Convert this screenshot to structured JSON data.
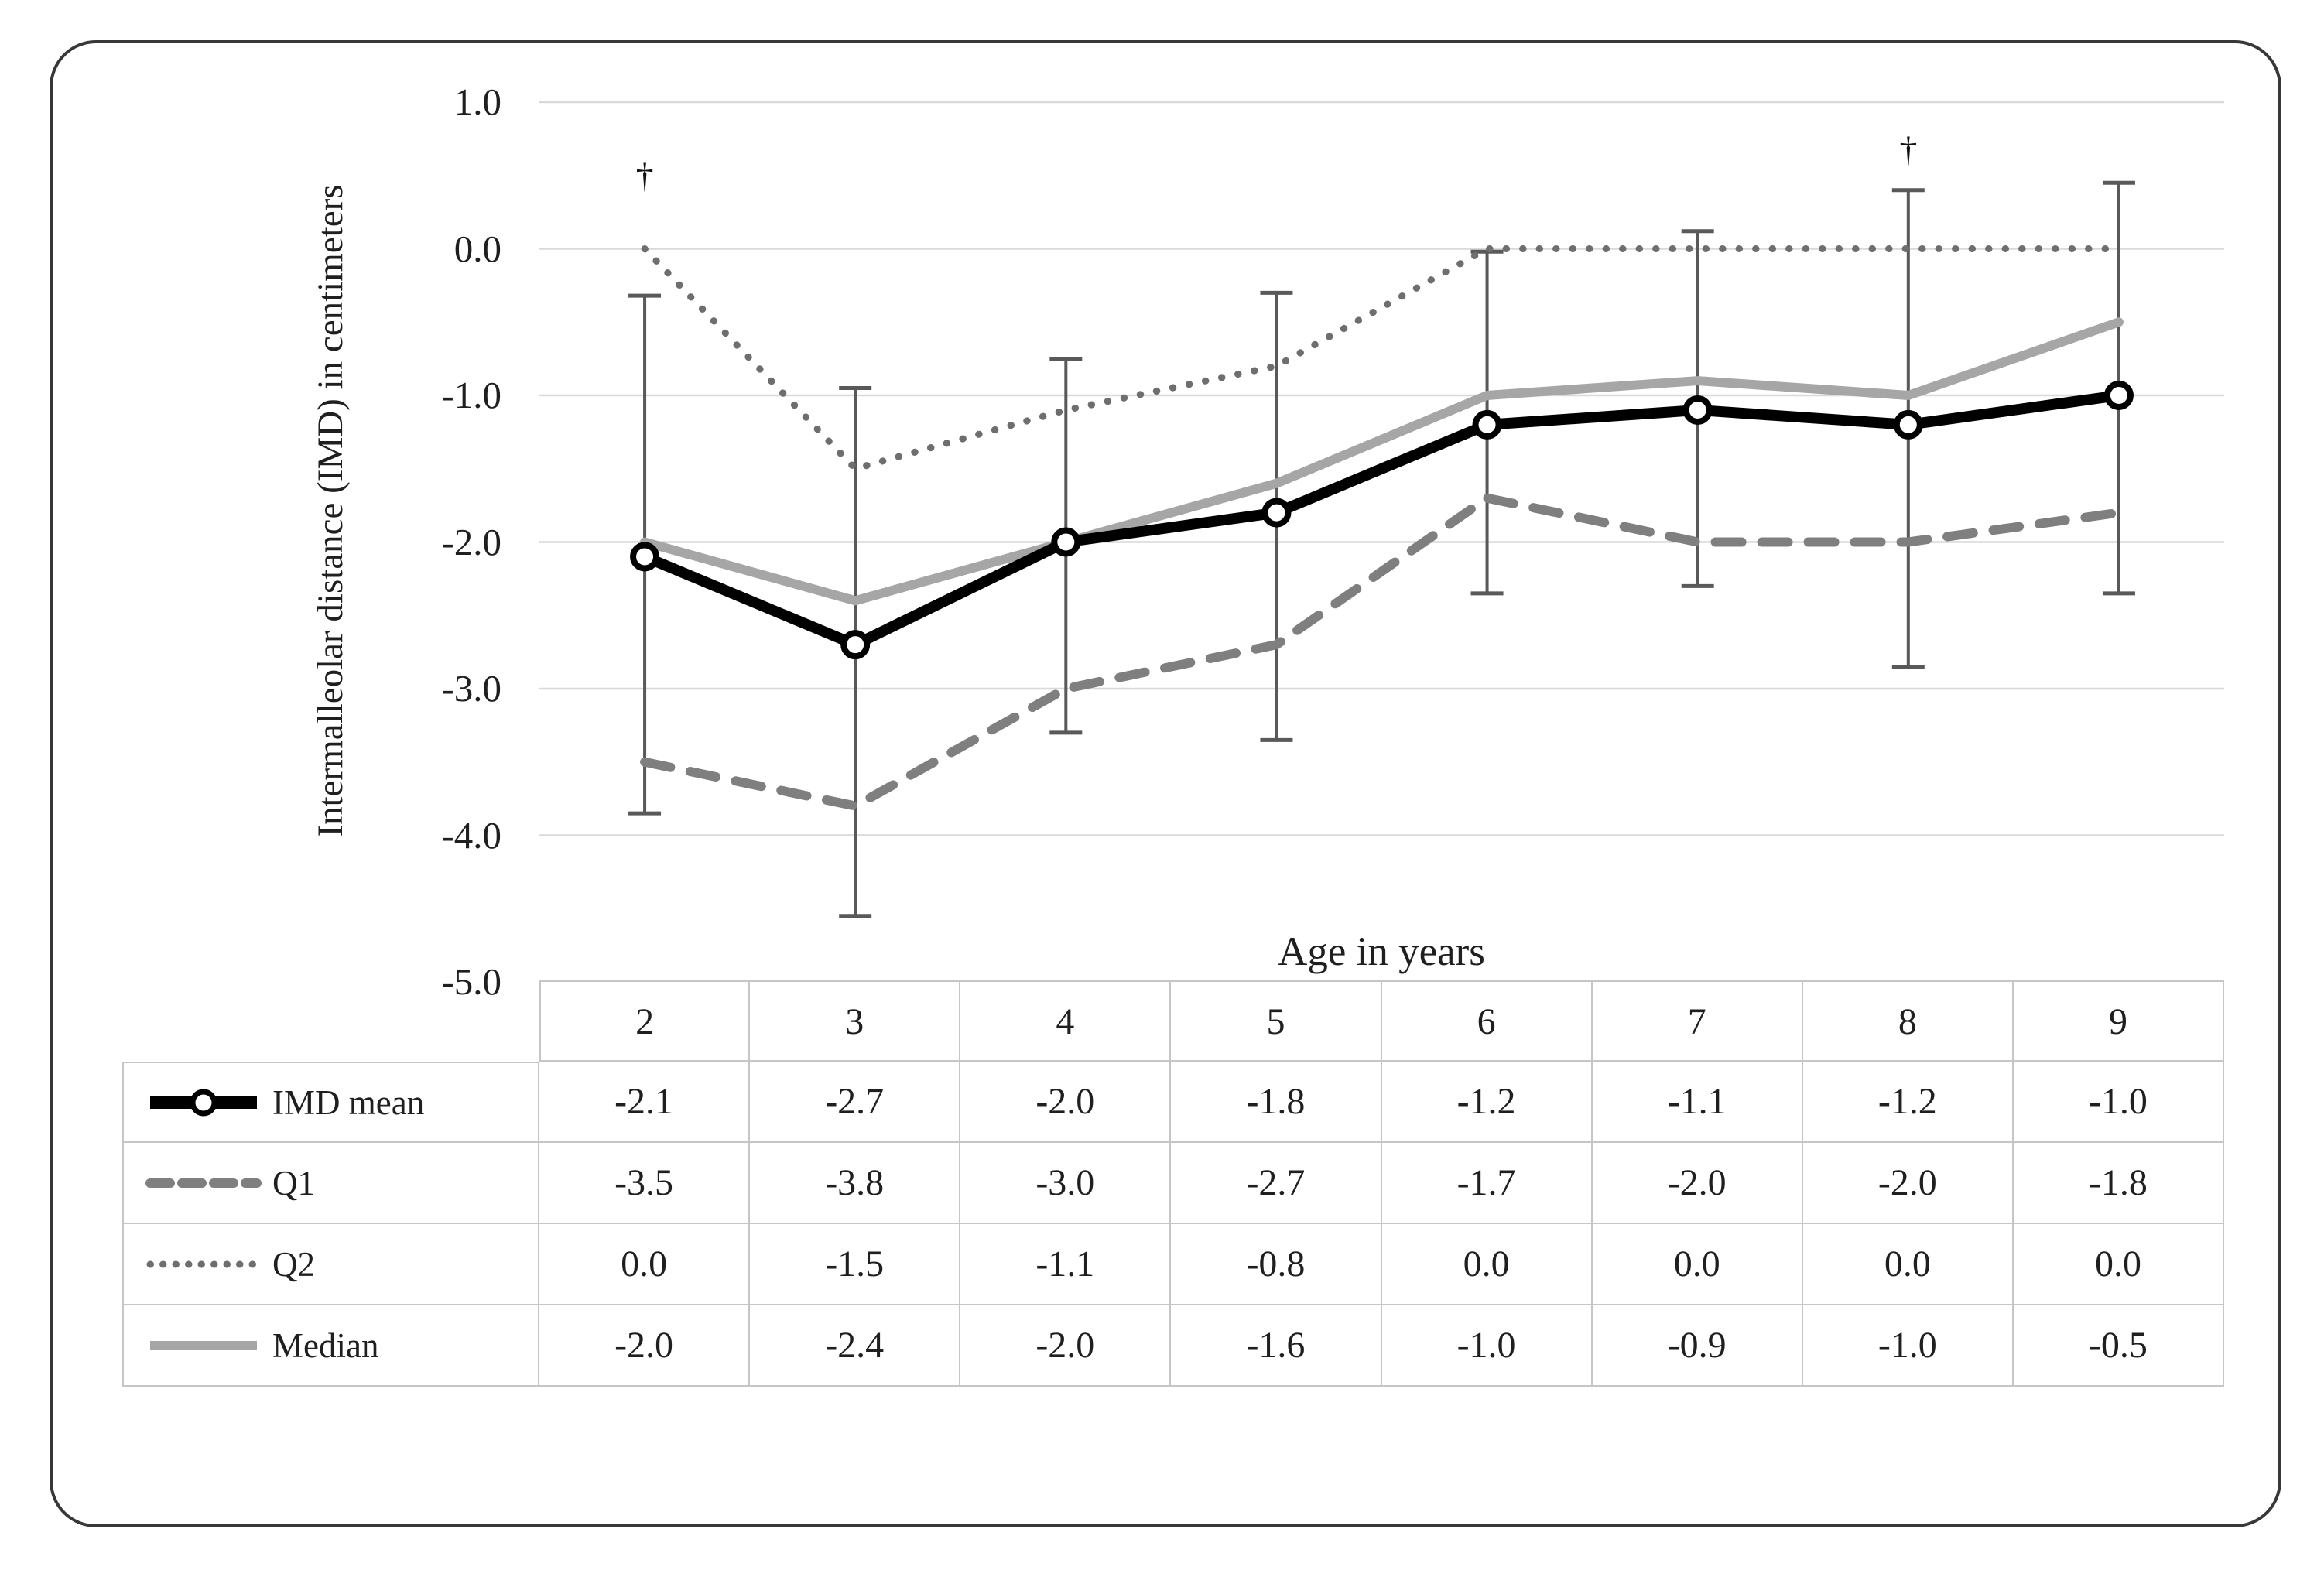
{
  "figure": {
    "kind": "excel-line-chart-with-data-table",
    "background_color": "#ffffff",
    "border_color": "#383838"
  },
  "chart": {
    "y_axis": {
      "title": "Intermalleolar distance (IMD) in centimeters",
      "tick_labels": [
        "1.0",
        "0.0",
        "-1.0",
        "-2.0",
        "-3.0",
        "-4.0",
        "-5.0"
      ],
      "tick_values": [
        1,
        0,
        -1,
        -2,
        -3,
        -4,
        -5
      ]
    },
    "x_axis": {
      "title": "Age in years",
      "categories": [
        "2",
        "3",
        "4",
        "5",
        "6",
        "7",
        "8",
        "9"
      ]
    },
    "grid_color": "#d9d9d9",
    "table_border_color": "#c6c6c6",
    "text_color": "#1f1f1f"
  },
  "chart_data": {
    "type": "line",
    "title": "",
    "xlabel": "Age in years",
    "ylabel": "Intermalleolar distance (IMD) in centimeters",
    "categories": [
      2,
      3,
      4,
      5,
      6,
      7,
      8,
      9
    ],
    "ylim": [
      -5.0,
      1.0
    ],
    "grid": true,
    "legend_position": "table-left",
    "series": [
      {
        "name": "IMD mean",
        "key": "imd-mean",
        "values": [
          -2.1,
          -2.7,
          -2.0,
          -1.8,
          -1.2,
          -1.1,
          -1.2,
          -1.0
        ],
        "color": "#000000",
        "line_style": "solid",
        "line_width": 14,
        "marker": "circle-open",
        "marker_fill": "#ffffff"
      },
      {
        "name": "Q1",
        "key": "q1",
        "values": [
          -3.5,
          -3.8,
          -3.0,
          -2.7,
          -1.7,
          -2.0,
          -2.0,
          -1.8
        ],
        "color": "#7f7f7f",
        "line_style": "dashed",
        "line_width": 12,
        "marker": "none"
      },
      {
        "name": "Q2",
        "key": "q2",
        "values": [
          0.0,
          -1.5,
          -1.1,
          -0.8,
          0.0,
          0.0,
          0.0,
          0.0
        ],
        "color": "#6e6e6e",
        "line_style": "dotted",
        "line_width": 9,
        "marker": "none"
      },
      {
        "name": "Median",
        "key": "median",
        "values": [
          -2.0,
          -2.4,
          -2.0,
          -1.6,
          -1.0,
          -0.9,
          -1.0,
          -0.5
        ],
        "color": "#a6a6a6",
        "line_style": "solid",
        "line_width": 12,
        "marker": "none"
      }
    ],
    "error_bars": {
      "on_series": "IMD mean",
      "color": "#595959",
      "low": [
        -3.85,
        -4.55,
        -3.3,
        -3.35,
        -2.35,
        -2.3,
        -2.85,
        -2.35
      ],
      "high": [
        -0.32,
        -0.95,
        -0.75,
        -0.3,
        -0.02,
        0.12,
        0.4,
        0.45
      ]
    },
    "annotations": [
      {
        "symbol": "†",
        "x": 2,
        "y": 0.5
      },
      {
        "symbol": "†",
        "x": 8,
        "y": 0.68
      }
    ]
  },
  "table": {
    "header": [
      "2",
      "3",
      "4",
      "5",
      "6",
      "7",
      "8",
      "9"
    ],
    "rows": [
      {
        "label": "IMD mean",
        "key": "imd-mean",
        "values": [
          "-2.1",
          "-2.7",
          "-2.0",
          "-1.8",
          "-1.2",
          "-1.1",
          "-1.2",
          "-1.0"
        ]
      },
      {
        "label": "Q1",
        "key": "q1",
        "values": [
          "-3.5",
          "-3.8",
          "-3.0",
          "-2.7",
          "-1.7",
          "-2.0",
          "-2.0",
          "-1.8"
        ]
      },
      {
        "label": "Q2",
        "key": "q2",
        "values": [
          "0.0",
          "-1.5",
          "-1.1",
          "-0.8",
          "0.0",
          "0.0",
          "0.0",
          "0.0"
        ]
      },
      {
        "label": "Median",
        "key": "median",
        "values": [
          "-2.0",
          "-2.4",
          "-2.0",
          "-1.6",
          "-1.0",
          "-0.9",
          "-1.0",
          "-0.5"
        ]
      }
    ]
  }
}
